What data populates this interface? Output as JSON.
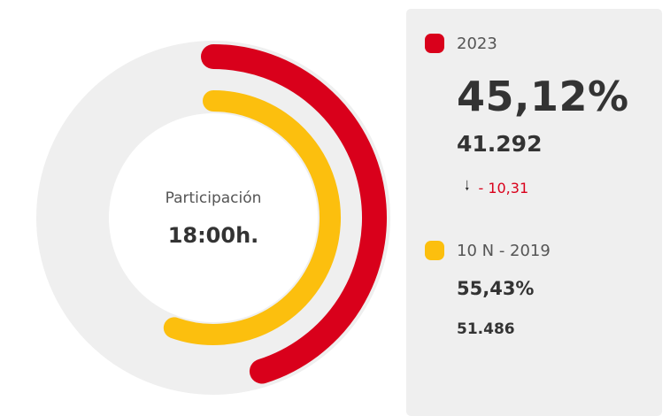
{
  "chart_data": {
    "type": "radial-bar",
    "center_label": "Participación",
    "center_value": "18:00h.",
    "series": [
      {
        "name": "2023",
        "value": 45.12,
        "value_label": "45,12%",
        "count": "41.292",
        "change": "- 10,31",
        "color": "#d9001b"
      },
      {
        "name": "10 N - 2019",
        "value": 55.43,
        "value_label": "55,43%",
        "count": "51.486",
        "color": "#fcbf0e"
      }
    ],
    "track_color": "#efefef",
    "max": 100
  },
  "icons": {
    "change": "arrow-down-icon"
  }
}
